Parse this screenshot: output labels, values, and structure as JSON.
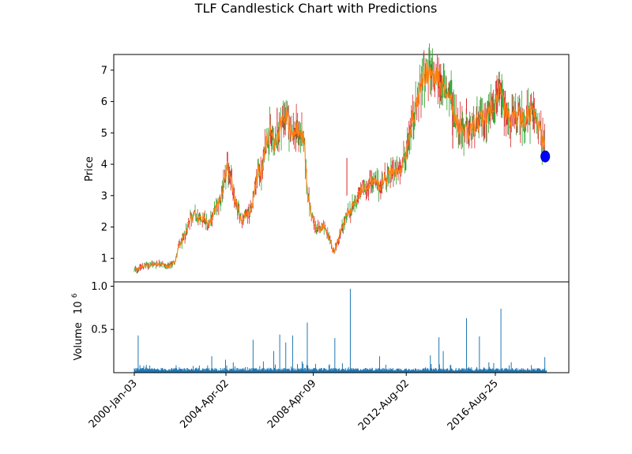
{
  "chart_data": [
    {
      "type": "candlestick",
      "title": "TLF Candlestick Chart with Predictions",
      "ylabel": "Price",
      "ylim": [
        0.25,
        7.5
      ],
      "yticks": [
        1,
        2,
        3,
        4,
        5,
        6,
        7
      ],
      "x_ticks": [
        "2000-Jan-03",
        "2004-Apr-02",
        "2008-Apr-09",
        "2012-Aug-02",
        "2016-Aug-25"
      ],
      "x_tick_index": [
        0,
        1065,
        2080,
        3160,
        4195
      ],
      "n_points": 4790,
      "colors": {
        "close_line": "#ff7f0e",
        "up": "#2ca02c",
        "down": "#d62728",
        "prediction": "#0000ff"
      },
      "price_path": [
        [
          0,
          0.62
        ],
        [
          100,
          0.75
        ],
        [
          200,
          0.8
        ],
        [
          300,
          0.85
        ],
        [
          400,
          0.72
        ],
        [
          480,
          0.95
        ],
        [
          520,
          1.4
        ],
        [
          560,
          1.55
        ],
        [
          600,
          1.85
        ],
        [
          650,
          2.3
        ],
        [
          700,
          2.4
        ],
        [
          750,
          2.2
        ],
        [
          800,
          2.3
        ],
        [
          850,
          2.1
        ],
        [
          900,
          2.3
        ],
        [
          950,
          2.6
        ],
        [
          1000,
          2.9
        ],
        [
          1050,
          3.4
        ],
        [
          1080,
          3.9
        ],
        [
          1120,
          3.7
        ],
        [
          1150,
          3.0
        ],
        [
          1200,
          2.6
        ],
        [
          1250,
          2.2
        ],
        [
          1300,
          2.45
        ],
        [
          1350,
          2.5
        ],
        [
          1400,
          3.2
        ],
        [
          1450,
          3.9
        ],
        [
          1480,
          3.6
        ],
        [
          1530,
          4.8
        ],
        [
          1580,
          5.0
        ],
        [
          1640,
          4.6
        ],
        [
          1700,
          5.3
        ],
        [
          1760,
          5.6
        ],
        [
          1800,
          5.2
        ],
        [
          1850,
          5.0
        ],
        [
          1900,
          5.1
        ],
        [
          1950,
          4.9
        ],
        [
          1980,
          4.5
        ],
        [
          2010,
          3.2
        ],
        [
          2050,
          2.5
        ],
        [
          2100,
          2.0
        ],
        [
          2150,
          1.9
        ],
        [
          2200,
          2.1
        ],
        [
          2250,
          1.7
        ],
        [
          2300,
          1.3
        ],
        [
          2330,
          1.25
        ],
        [
          2370,
          1.6
        ],
        [
          2420,
          2.0
        ],
        [
          2480,
          2.4
        ],
        [
          2550,
          2.7
        ],
        [
          2600,
          3.0
        ],
        [
          2650,
          3.2
        ],
        [
          2700,
          3.3
        ],
        [
          2750,
          3.5
        ],
        [
          2800,
          3.4
        ],
        [
          2850,
          3.3
        ],
        [
          2900,
          3.5
        ],
        [
          2950,
          3.6
        ],
        [
          3000,
          3.8
        ],
        [
          3050,
          3.7
        ],
        [
          3100,
          3.9
        ],
        [
          3150,
          4.2
        ],
        [
          3180,
          4.8
        ],
        [
          3230,
          5.4
        ],
        [
          3280,
          5.9
        ],
        [
          3330,
          6.5
        ],
        [
          3380,
          6.9
        ],
        [
          3430,
          6.8
        ],
        [
          3480,
          6.7
        ],
        [
          3530,
          6.85
        ],
        [
          3580,
          6.4
        ],
        [
          3630,
          6.3
        ],
        [
          3680,
          6.1
        ],
        [
          3720,
          5.6
        ],
        [
          3760,
          5.3
        ],
        [
          3820,
          5.1
        ],
        [
          3880,
          5.0
        ],
        [
          3940,
          5.2
        ],
        [
          4000,
          5.3
        ],
        [
          4060,
          5.5
        ],
        [
          4120,
          5.7
        ],
        [
          4180,
          5.95
        ],
        [
          4230,
          6.3
        ],
        [
          4280,
          6.0
        ],
        [
          4330,
          5.6
        ],
        [
          4380,
          5.4
        ],
        [
          4430,
          5.5
        ],
        [
          4480,
          5.55
        ],
        [
          4540,
          5.4
        ],
        [
          4600,
          5.6
        ],
        [
          4650,
          5.6
        ],
        [
          4700,
          5.2
        ],
        [
          4740,
          4.8
        ],
        [
          4770,
          4.5
        ]
      ],
      "prediction": {
        "x": 4775,
        "y": 4.25
      }
    },
    {
      "type": "bar",
      "ylabel": "Volume",
      "ylabel_suffix": "10",
      "ylabel_exp": "6",
      "ylim": [
        0,
        1.05
      ],
      "yticks": [
        0.5,
        1.0
      ],
      "ytick_labels": [
        "0.5",
        "1.0"
      ],
      "color": "#1f77b4",
      "baseline": 0.02,
      "spikes": [
        [
          45,
          0.43
        ],
        [
          110,
          0.08
        ],
        [
          140,
          0.09
        ],
        [
          900,
          0.19
        ],
        [
          1060,
          0.15
        ],
        [
          1150,
          0.12
        ],
        [
          1380,
          0.38
        ],
        [
          1500,
          0.13
        ],
        [
          1620,
          0.25
        ],
        [
          1690,
          0.44
        ],
        [
          1760,
          0.35
        ],
        [
          1840,
          0.43
        ],
        [
          1950,
          0.13
        ],
        [
          2010,
          0.58
        ],
        [
          2330,
          0.4
        ],
        [
          2510,
          0.97
        ],
        [
          2850,
          0.19
        ],
        [
          3440,
          0.2
        ],
        [
          3540,
          0.41
        ],
        [
          3590,
          0.25
        ],
        [
          3860,
          0.63
        ],
        [
          4010,
          0.42
        ],
        [
          4120,
          0.12
        ],
        [
          4260,
          0.74
        ],
        [
          4770,
          0.18
        ]
      ]
    }
  ]
}
